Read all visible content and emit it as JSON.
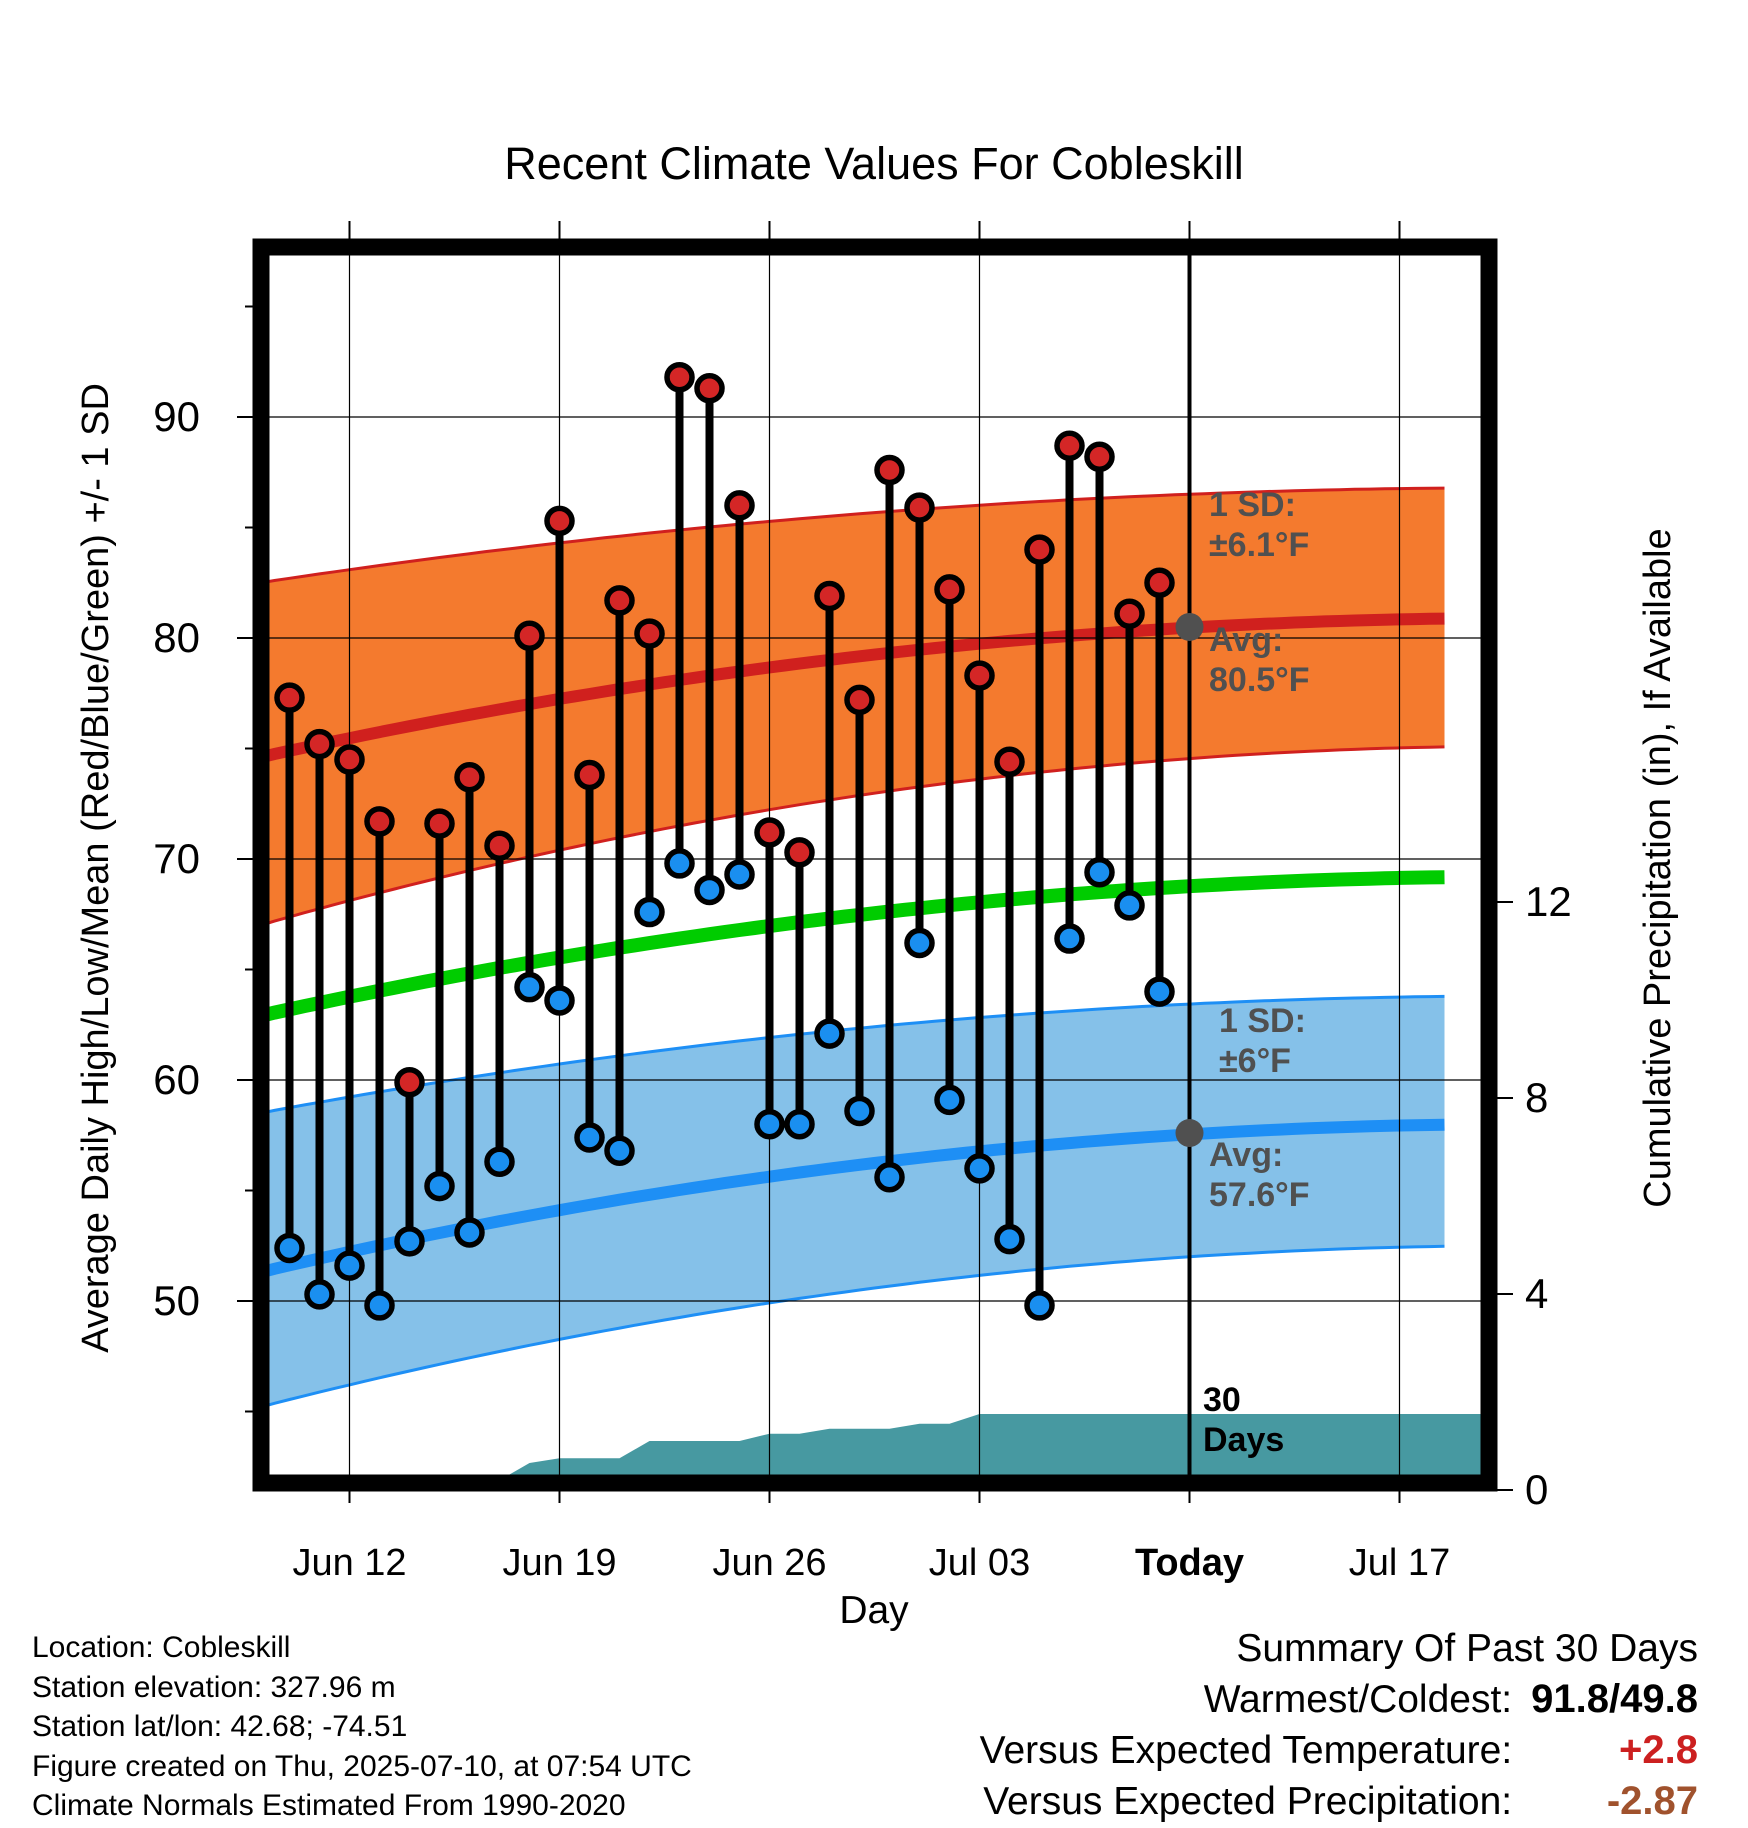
{
  "title": "Recent Climate Values For Cobleskill",
  "chart_data": {
    "type": "line",
    "title": "Recent Climate Values For Cobleskill",
    "xlabel": "Day",
    "ylabel_left": "Average Daily High/Low/Mean (Red/Blue/Green) +/- 1 SD",
    "ylabel_right": "Cumulative Precipitation (in), If Available",
    "x_ticks": [
      "Jun 12",
      "Jun 19",
      "Jun 26",
      "Jul 03",
      "Today",
      "Jul 17"
    ],
    "y_ticks_left": [
      50,
      60,
      70,
      80,
      90
    ],
    "y_ticks_right": [
      0,
      4,
      8,
      12
    ],
    "ylim_left": [
      41.8,
      97
    ],
    "ylim_right": [
      0,
      27
    ],
    "xlim_day_offset": [
      -3,
      37.5
    ],
    "days": [
      "Jun 10",
      "Jun 11",
      "Jun 12",
      "Jun 13",
      "Jun 14",
      "Jun 15",
      "Jun 16",
      "Jun 17",
      "Jun 18",
      "Jun 19",
      "Jun 20",
      "Jun 21",
      "Jun 22",
      "Jun 23",
      "Jun 24",
      "Jun 25",
      "Jun 26",
      "Jun 27",
      "Jun 28",
      "Jun 29",
      "Jun 30",
      "Jul 01",
      "Jul 02",
      "Jul 03",
      "Jul 04",
      "Jul 05",
      "Jul 06",
      "Jul 07",
      "Jul 08",
      "Jul 09"
    ],
    "daily_high": [
      77.3,
      75.2,
      74.5,
      71.7,
      59.9,
      71.6,
      73.7,
      70.6,
      80.1,
      85.3,
      73.8,
      81.7,
      80.2,
      91.8,
      91.3,
      86.0,
      71.2,
      70.3,
      81.9,
      77.2,
      87.6,
      85.9,
      82.2,
      78.3,
      74.4,
      84.0,
      88.7,
      88.2,
      81.1,
      82.5
    ],
    "daily_low": [
      52.4,
      50.3,
      51.6,
      49.8,
      52.7,
      55.2,
      53.1,
      56.3,
      64.2,
      63.6,
      57.4,
      56.8,
      67.6,
      69.8,
      68.6,
      69.3,
      58.0,
      58.0,
      62.1,
      58.6,
      55.6,
      66.2,
      59.1,
      56.0,
      52.8,
      49.8,
      66.4,
      69.4,
      67.9,
      64.0
    ],
    "normals": {
      "x": [
        "Jun 09",
        "Jul 21"
      ],
      "avg_high": [
        74.6,
        80.9
      ],
      "avg_low": [
        51.3,
        58.0
      ],
      "avg_mean": [
        62.9,
        69.2
      ],
      "high_plus_sd": [
        82.5,
        86.8
      ],
      "high_minus_sd": [
        67.0,
        75.1
      ],
      "low_plus_sd": [
        58.5,
        63.8
      ],
      "low_minus_sd": [
        45.2,
        52.5
      ]
    },
    "cumulative_precipitation": {
      "days": [
        "Jun 10",
        "Jun 11",
        "Jun 12",
        "Jun 13",
        "Jun 14",
        "Jun 15",
        "Jun 16",
        "Jun 17",
        "Jun 18",
        "Jun 19",
        "Jun 20",
        "Jun 21",
        "Jun 22",
        "Jun 23",
        "Jun 24",
        "Jun 25",
        "Jun 26",
        "Jun 27",
        "Jun 28",
        "Jun 29",
        "Jun 30",
        "Jul 01",
        "Jul 02",
        "Jul 03",
        "Jul 04",
        "Jul 05",
        "Jul 06",
        "Jul 07",
        "Jul 08",
        "Jul 09"
      ],
      "values": [
        0,
        0,
        0,
        0,
        0.02,
        0.05,
        0.12,
        0.2,
        0.55,
        0.65,
        0.65,
        0.65,
        1.0,
        1.0,
        1.0,
        1.0,
        1.15,
        1.15,
        1.25,
        1.25,
        1.25,
        1.35,
        1.35,
        1.55,
        1.55,
        1.55,
        1.55,
        1.55,
        1.55,
        1.55
      ]
    },
    "annotations": {
      "high_sd": [
        "1 SD:",
        "±6.1°F"
      ],
      "high_avg": [
        "Avg:",
        "80.5°F"
      ],
      "low_sd": [
        "1 SD:",
        "±6°F"
      ],
      "low_avg": [
        "Avg:",
        "57.6°F"
      ],
      "period": [
        "30",
        "Days"
      ]
    },
    "colors": {
      "high_band": "#f47a2e",
      "high_line": "#d0201e",
      "low_band": "#85c1e9",
      "low_line": "#1e8ff5",
      "mean_line": "#00cc00",
      "precip": "#4799a1",
      "high_marker": "#d42626",
      "low_marker": "#1a8ff0",
      "today_marker": "#505050"
    },
    "grid": true
  },
  "footer": {
    "location": "Location: Cobleskill",
    "elevation": "Station elevation: 327.96 m",
    "latlon": "Station lat/lon: 42.68; -74.51",
    "created": "Figure created on Thu, 2025-07-10, at 07:54 UTC",
    "normals": "Climate Normals Estimated From 1990-2020"
  },
  "summary": {
    "heading": "Summary Of Past 30 Days",
    "warmest_label": "Warmest/Coldest:",
    "warmest_value": "91.8/49.8",
    "temp_label": "Versus Expected Temperature:",
    "temp_value": "+2.8",
    "precip_label": "Versus Expected Precipitation:",
    "precip_value": "-2.87"
  }
}
